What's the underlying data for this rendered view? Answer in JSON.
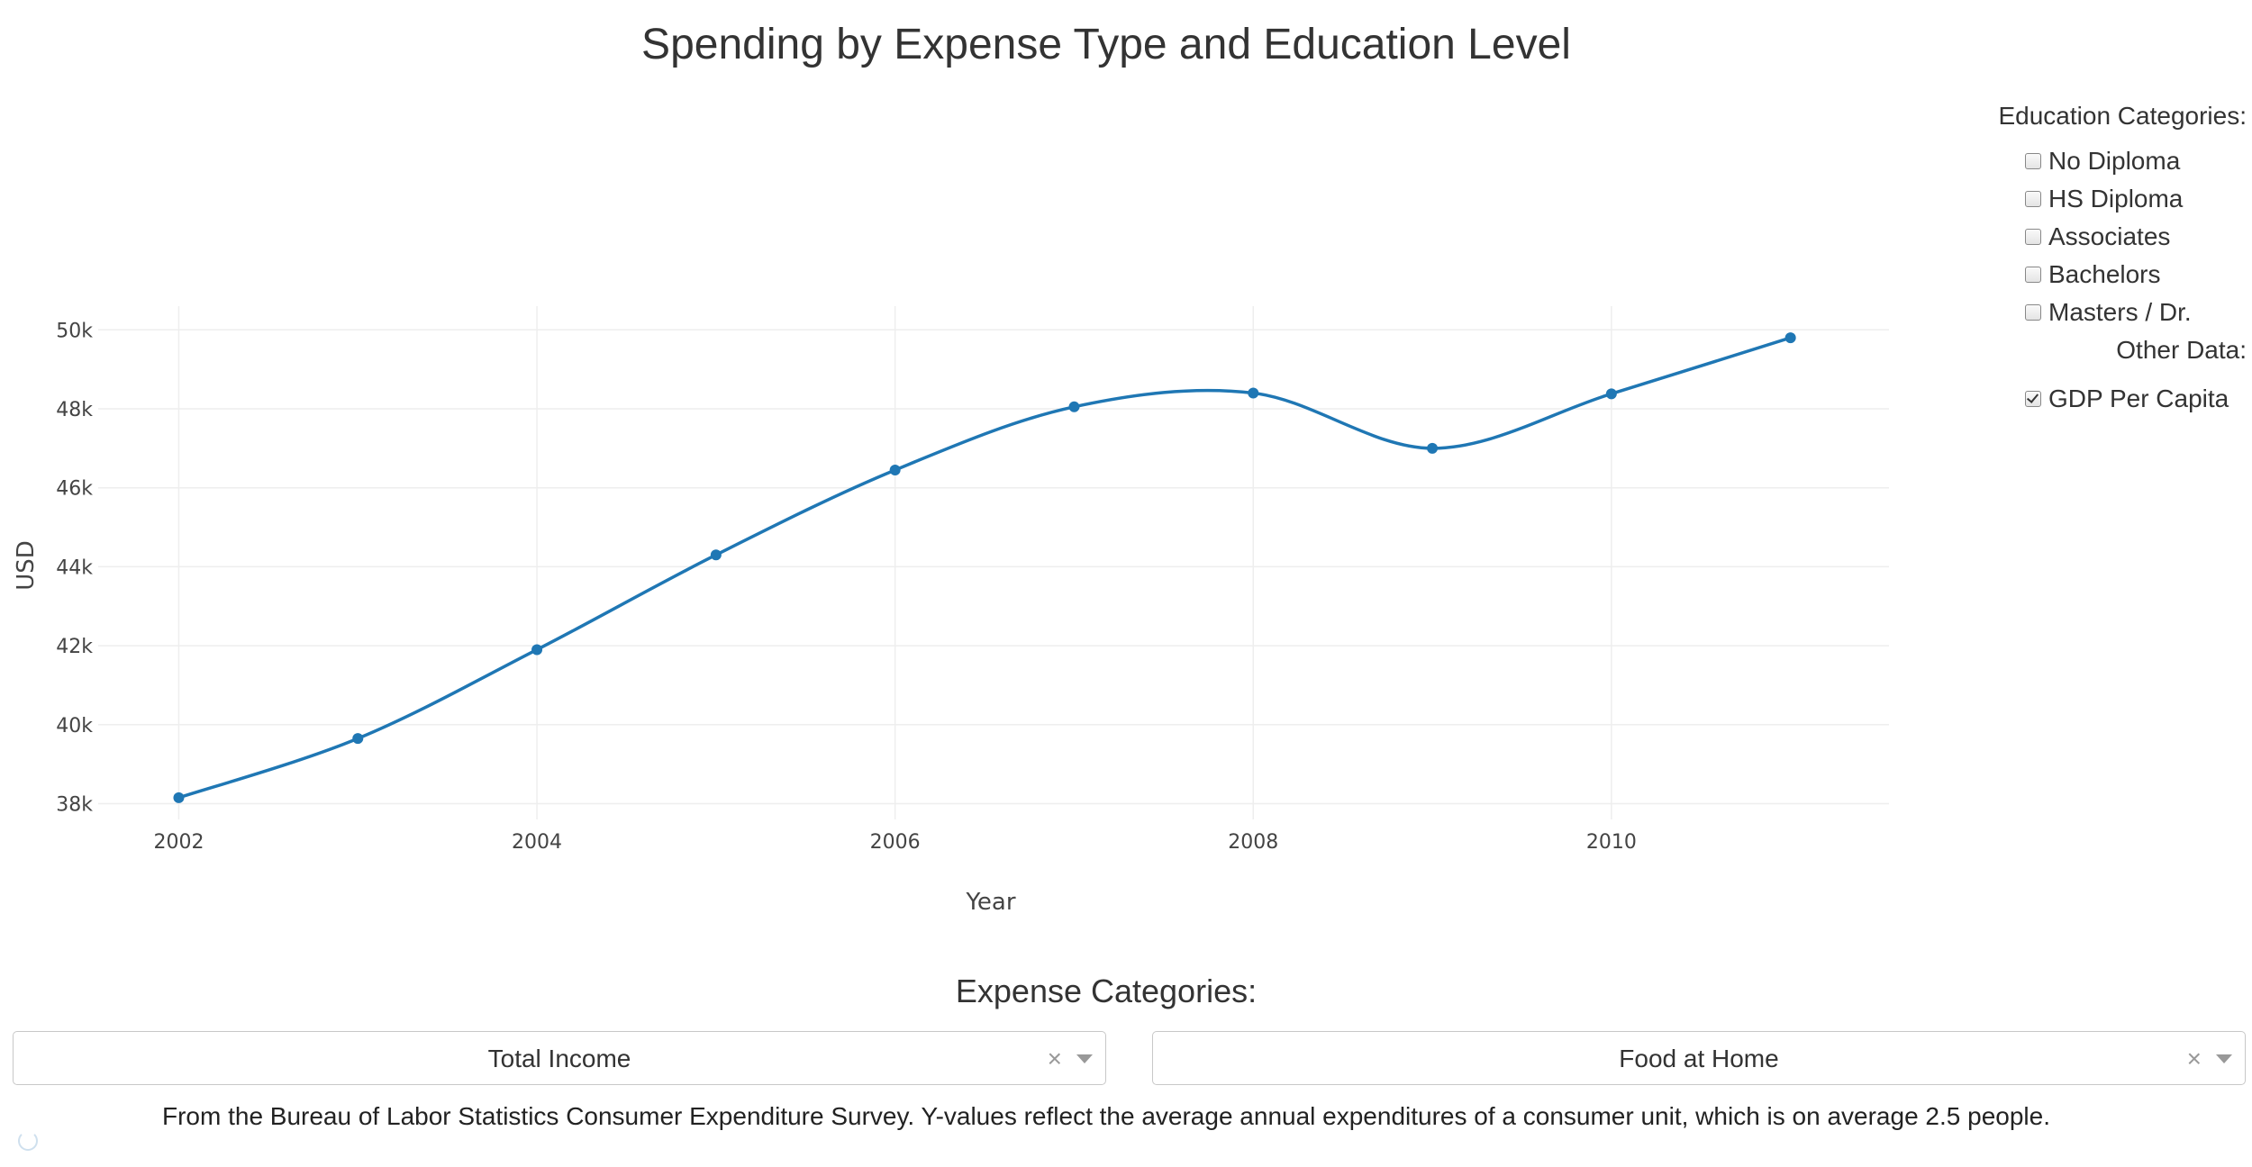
{
  "title": "Spending by Expense Type and Education Level",
  "education_panel": {
    "heading": "Education Categories:",
    "items": [
      {
        "label": "No Diploma",
        "checked": false
      },
      {
        "label": "HS Diploma",
        "checked": false
      },
      {
        "label": "Associates",
        "checked": false
      },
      {
        "label": "Bachelors",
        "checked": false
      },
      {
        "label": "Masters / Dr.",
        "checked": false
      }
    ]
  },
  "other_panel": {
    "heading": "Other Data:",
    "items": [
      {
        "label": "GDP Per Capita",
        "checked": true
      }
    ]
  },
  "expense": {
    "heading": "Expense Categories:",
    "dropdowns": [
      {
        "value": "Total Income",
        "clear": "×"
      },
      {
        "value": "Food at Home",
        "clear": "×"
      }
    ]
  },
  "footnote": "From the Bureau of Labor Statistics Consumer Expenditure Survey. Y-values reflect the average annual expenditures of a consumer unit, which is on average 2.5 people.",
  "colors": {
    "line": "#1f77b4",
    "grid": "#eeeeee",
    "text": "#444444"
  },
  "chart_data": {
    "type": "line",
    "title": "",
    "xlabel": "Year",
    "ylabel": "USD",
    "x_ticks": [
      2002,
      2004,
      2006,
      2008,
      2010
    ],
    "x_tick_labels": [
      "2002",
      "2004",
      "2006",
      "2008",
      "2010"
    ],
    "y_ticks": [
      38000,
      40000,
      42000,
      44000,
      46000,
      48000,
      50000
    ],
    "y_tick_labels": [
      "38k",
      "40k",
      "42k",
      "44k",
      "46k",
      "48k",
      "50k"
    ],
    "xlim": [
      2001.55,
      2011.55
    ],
    "ylim": [
      37600,
      50600
    ],
    "grid": true,
    "legend": "none",
    "series": [
      {
        "x": [
          2002,
          2003,
          2004,
          2005,
          2006,
          2007,
          2008,
          2009,
          2010,
          2011
        ],
        "y": [
          38150,
          39650,
          41900,
          44300,
          46450,
          48050,
          48400,
          47000,
          48380,
          49800
        ]
      }
    ]
  }
}
